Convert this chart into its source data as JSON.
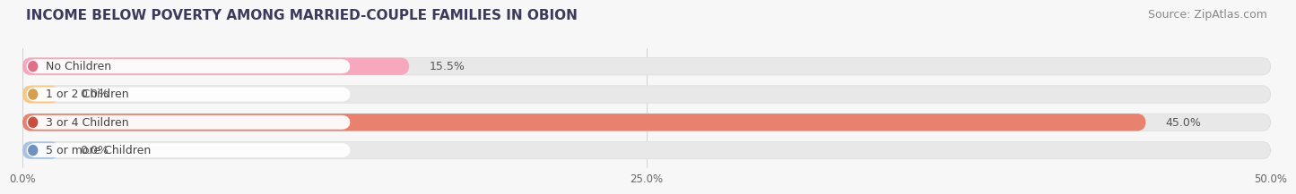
{
  "title": "INCOME BELOW POVERTY AMONG MARRIED-COUPLE FAMILIES IN OBION",
  "source": "Source: ZipAtlas.com",
  "categories": [
    "No Children",
    "1 or 2 Children",
    "3 or 4 Children",
    "5 or more Children"
  ],
  "values": [
    15.5,
    0.0,
    45.0,
    0.0
  ],
  "bar_colors": [
    "#f7a8bc",
    "#f5c98a",
    "#e8826e",
    "#a8c4e0"
  ],
  "label_colors": [
    "#e0708a",
    "#d4a050",
    "#c85040",
    "#7090c0"
  ],
  "xlim": [
    0,
    50
  ],
  "xticks": [
    0,
    25,
    50
  ],
  "xtick_labels": [
    "0.0%",
    "25.0%",
    "50.0%"
  ],
  "background_color": "#f7f7f7",
  "bar_background": "#e8e8e8",
  "title_fontsize": 11,
  "source_fontsize": 9,
  "label_fontsize": 9,
  "value_fontsize": 9,
  "bar_height": 0.62,
  "figsize": [
    14.06,
    2.32
  ]
}
